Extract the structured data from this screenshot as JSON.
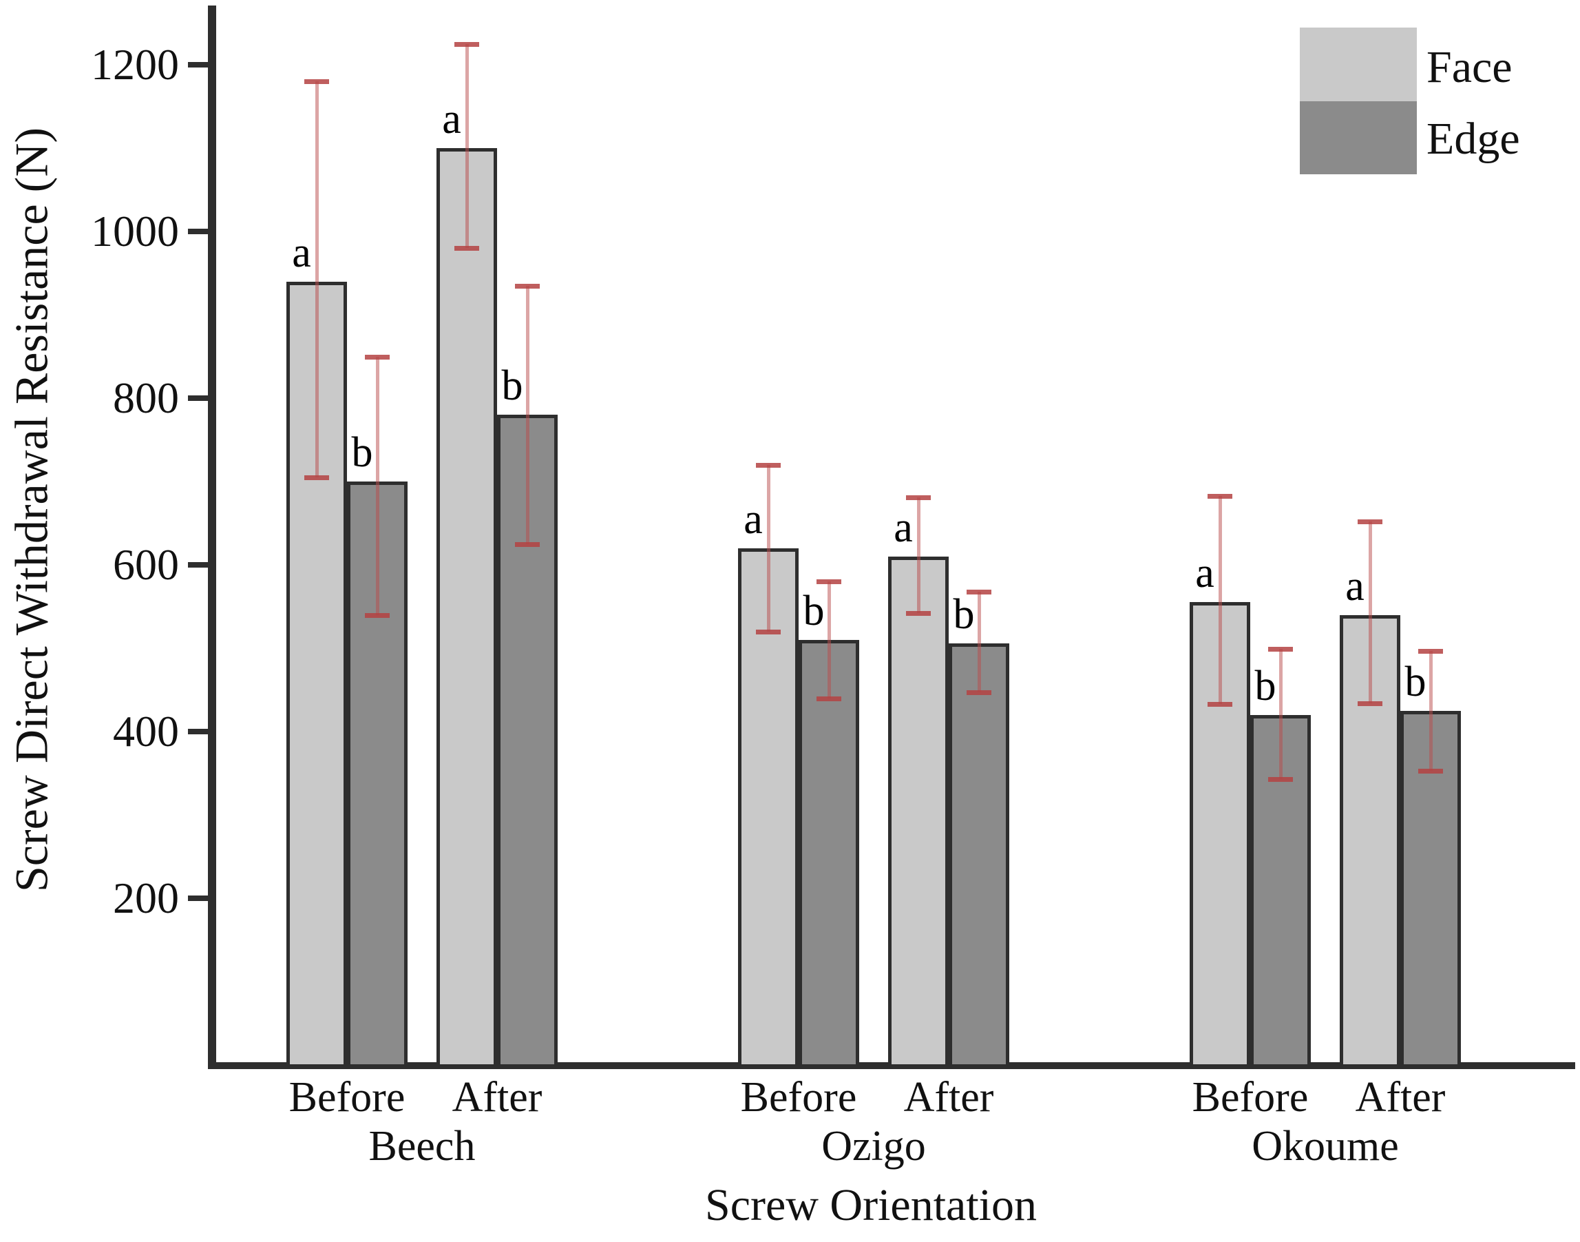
{
  "figure": {
    "kind": "grouped bar chart with error bars",
    "background": "#ffffff"
  },
  "chart_data": {
    "type": "bar",
    "title": "",
    "xlabel": "Screw Orientation",
    "ylabel": "Screw Direct Withdrawal Resistance (N)",
    "ylim": [
      0,
      1270
    ],
    "yticks": [
      200,
      400,
      600,
      800,
      1000,
      1200
    ],
    "grid": false,
    "legend": {
      "position": "top-right",
      "entries": [
        {
          "label": "Face",
          "color": "#c9c9c9"
        },
        {
          "label": "Edge",
          "color": "#8b8b8b"
        }
      ]
    },
    "series_names": [
      "Face",
      "Edge"
    ],
    "groups": [
      {
        "species": "Beech",
        "conditions": [
          {
            "label": "Before",
            "bars": [
              {
                "series": "Face",
                "value": 940,
                "err_low": 705,
                "err_high": 1180,
                "letter": "a"
              },
              {
                "series": "Edge",
                "value": 700,
                "err_low": 540,
                "err_high": 850,
                "letter": "b"
              }
            ]
          },
          {
            "label": "After",
            "bars": [
              {
                "series": "Face",
                "value": 1100,
                "err_low": 980,
                "err_high": 1225,
                "letter": "a"
              },
              {
                "series": "Edge",
                "value": 780,
                "err_low": 625,
                "err_high": 935,
                "letter": "b"
              }
            ]
          }
        ]
      },
      {
        "species": "Ozigo",
        "conditions": [
          {
            "label": "Before",
            "bars": [
              {
                "series": "Face",
                "value": 620,
                "err_low": 520,
                "err_high": 720,
                "letter": "a"
              },
              {
                "series": "Edge",
                "value": 510,
                "err_low": 440,
                "err_high": 580,
                "letter": "b"
              }
            ]
          },
          {
            "label": "After",
            "bars": [
              {
                "series": "Face",
                "value": 610,
                "err_low": 542,
                "err_high": 681,
                "letter": "a"
              },
              {
                "series": "Edge",
                "value": 506,
                "err_low": 447,
                "err_high": 568,
                "letter": "b"
              }
            ]
          }
        ]
      },
      {
        "species": "Okoume",
        "conditions": [
          {
            "label": "Before",
            "bars": [
              {
                "series": "Face",
                "value": 555,
                "err_low": 433,
                "err_high": 683,
                "letter": "a"
              },
              {
                "series": "Edge",
                "value": 420,
                "err_low": 343,
                "err_high": 499,
                "letter": "b"
              }
            ]
          },
          {
            "label": "After",
            "bars": [
              {
                "series": "Face",
                "value": 540,
                "err_low": 434,
                "err_high": 652,
                "letter": "a"
              },
              {
                "series": "Edge",
                "value": 425,
                "err_low": 353,
                "err_high": 497,
                "letter": "b"
              }
            ]
          }
        ]
      }
    ],
    "colors": {
      "Face": "#c9c9c9",
      "Edge": "#8b8b8b",
      "error_line": "rgba(185,75,75,0.5)",
      "error_cap": "rgba(180,66,66,0.85)",
      "outline": "#2e2e2e",
      "axis": "#2e2e2e",
      "text": "#111111"
    }
  }
}
